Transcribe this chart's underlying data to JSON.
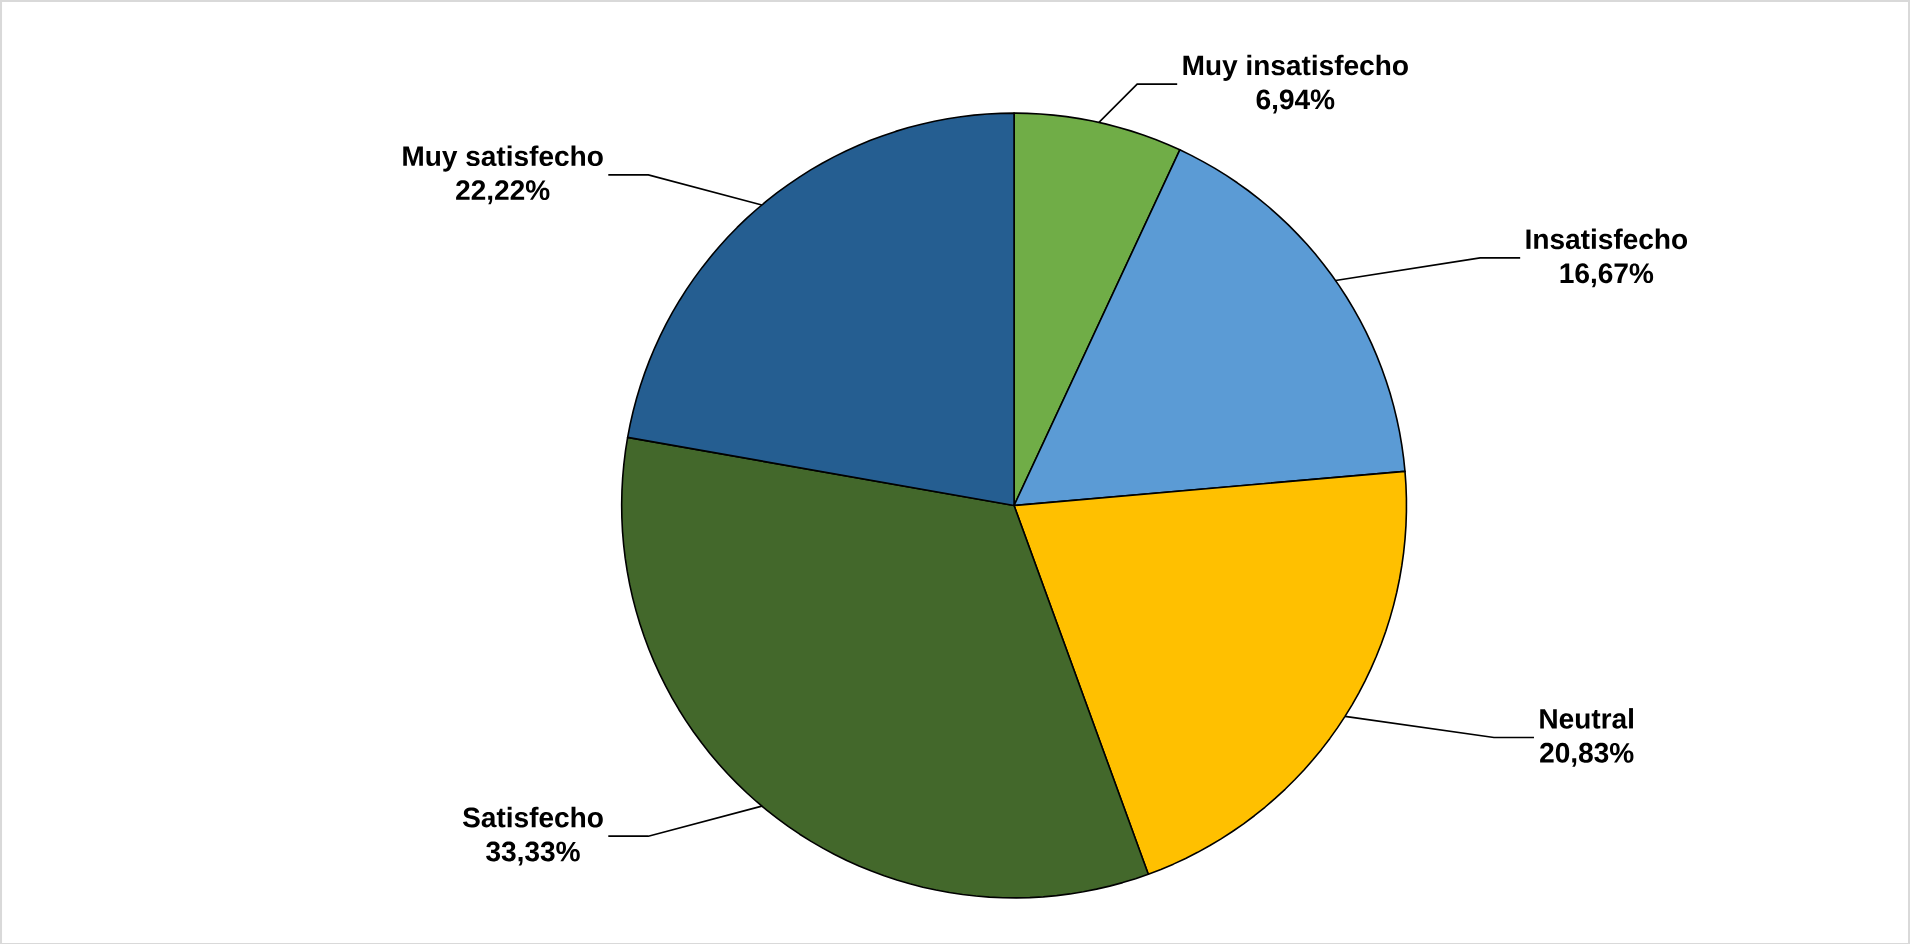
{
  "chart_data": {
    "type": "pie",
    "categories": [
      "Muy insatisfecho",
      "Insatisfecho",
      "Neutral",
      "Satisfecho",
      "Muy satisfecho"
    ],
    "values": [
      6.94,
      16.67,
      20.83,
      33.33,
      22.22
    ],
    "value_labels": [
      "6,94%",
      "16,67%",
      "20,83%",
      "33,33%",
      "22,22%"
    ],
    "colors": [
      "#70ad47",
      "#5b9bd5",
      "#ffc000",
      "#43682b",
      "#255e91"
    ]
  }
}
